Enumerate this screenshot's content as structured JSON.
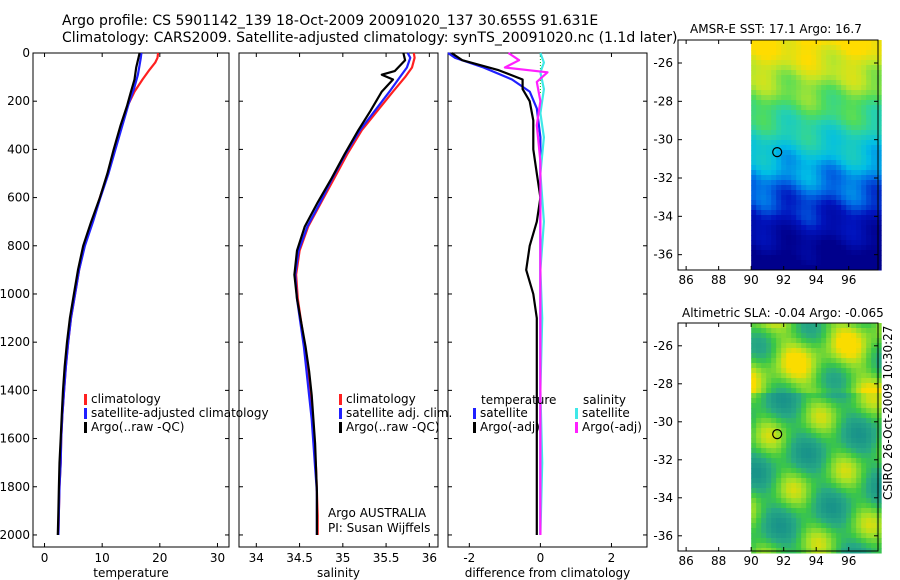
{
  "header": {
    "line1": "Argo profile: CS 5901142_139 18-Oct-2009 20091020_137 30.655S 91.631E",
    "line2": "Climatology: CARS2009. Satellite-adjusted climatology: synTS_20091020.nc (1.1d later)"
  },
  "colors": {
    "climatology": "#ff2020",
    "satellite": "#2020ff",
    "argo": "#000000",
    "sal_satellite": "#40e8e8",
    "sal_argo": "#ff20ff",
    "zero_line": "#00c000"
  },
  "chart_data": [
    {
      "type": "line",
      "id": "temperature",
      "xlabel": "temperature",
      "xlim": [
        -2,
        32
      ],
      "xticks": [
        0,
        10,
        20,
        30
      ],
      "ylim": [
        0,
        2050
      ],
      "yticks": [
        0,
        200,
        400,
        600,
        800,
        1000,
        1200,
        1400,
        1600,
        1800,
        2000
      ],
      "legend": [
        "climatology",
        "satellite-adjusted climatology",
        "Argo(..raw -QC)"
      ],
      "series": [
        {
          "name": "climatology",
          "color": "#ff2020",
          "points": [
            [
              19.7,
              0
            ],
            [
              19.6,
              20
            ],
            [
              19.2,
              40
            ],
            [
              18.2,
              70
            ],
            [
              17.0,
              110
            ],
            [
              15.6,
              160
            ],
            [
              14.4,
              220
            ],
            [
              13.3,
              300
            ],
            [
              12.2,
              400
            ],
            [
              11.0,
              500
            ],
            [
              9.6,
              600
            ],
            [
              8.3,
              700
            ],
            [
              6.9,
              800
            ],
            [
              6.0,
              900
            ],
            [
              5.3,
              1000
            ],
            [
              4.6,
              1100
            ],
            [
              4.1,
              1200
            ],
            [
              3.7,
              1300
            ],
            [
              3.4,
              1400
            ],
            [
              3.1,
              1500
            ],
            [
              2.9,
              1600
            ],
            [
              2.8,
              1700
            ],
            [
              2.6,
              1800
            ],
            [
              2.5,
              1900
            ],
            [
              2.4,
              2000
            ]
          ]
        },
        {
          "name": "satellite",
          "color": "#2020ff",
          "points": [
            [
              16.8,
              0
            ],
            [
              16.7,
              20
            ],
            [
              16.5,
              50
            ],
            [
              16.2,
              90
            ],
            [
              15.5,
              150
            ],
            [
              14.6,
              210
            ],
            [
              13.5,
              300
            ],
            [
              12.3,
              400
            ],
            [
              11.1,
              500
            ],
            [
              9.7,
              600
            ],
            [
              8.4,
              700
            ],
            [
              7.0,
              800
            ],
            [
              6.0,
              900
            ],
            [
              5.3,
              1000
            ],
            [
              4.6,
              1100
            ],
            [
              4.1,
              1200
            ],
            [
              3.7,
              1300
            ],
            [
              3.4,
              1400
            ],
            [
              3.1,
              1500
            ],
            [
              2.9,
              1600
            ],
            [
              2.8,
              1700
            ],
            [
              2.6,
              1800
            ],
            [
              2.5,
              1900
            ],
            [
              2.4,
              2000
            ]
          ]
        },
        {
          "name": "argo",
          "color": "#000000",
          "points": [
            [
              16.5,
              0
            ],
            [
              16.3,
              20
            ],
            [
              15.9,
              60
            ],
            [
              15.6,
              110
            ],
            [
              15.0,
              160
            ],
            [
              14.3,
              220
            ],
            [
              13.2,
              300
            ],
            [
              12.0,
              400
            ],
            [
              10.9,
              500
            ],
            [
              9.6,
              600
            ],
            [
              8.1,
              700
            ],
            [
              6.7,
              800
            ],
            [
              5.8,
              900
            ],
            [
              5.1,
              1000
            ],
            [
              4.4,
              1100
            ],
            [
              3.9,
              1200
            ],
            [
              3.5,
              1300
            ],
            [
              3.2,
              1400
            ],
            [
              3.0,
              1500
            ],
            [
              2.8,
              1600
            ],
            [
              2.6,
              1700
            ],
            [
              2.5,
              1800
            ],
            [
              2.4,
              1900
            ],
            [
              2.3,
              2000
            ]
          ]
        }
      ]
    },
    {
      "type": "line",
      "id": "salinity",
      "xlabel": "salinity",
      "xlim": [
        33.8,
        36.1
      ],
      "xticks": [
        34,
        34.5,
        35,
        35.5,
        36
      ],
      "ylim": [
        0,
        2050
      ],
      "legend": [
        "climatology",
        "satellite adj. clim.",
        "Argo(..raw -QC)"
      ],
      "annotation": [
        "Argo AUSTRALIA",
        "PI: Susan Wijffels"
      ],
      "series": [
        {
          "name": "climatology",
          "color": "#ff2020",
          "points": [
            [
              35.82,
              0
            ],
            [
              35.83,
              20
            ],
            [
              35.8,
              60
            ],
            [
              35.72,
              100
            ],
            [
              35.58,
              160
            ],
            [
              35.4,
              240
            ],
            [
              35.22,
              320
            ],
            [
              35.05,
              420
            ],
            [
              34.9,
              520
            ],
            [
              34.75,
              620
            ],
            [
              34.6,
              720
            ],
            [
              34.5,
              820
            ],
            [
              34.46,
              920
            ],
            [
              34.48,
              1020
            ],
            [
              34.52,
              1120
            ],
            [
              34.56,
              1220
            ],
            [
              34.59,
              1320
            ],
            [
              34.62,
              1420
            ],
            [
              34.65,
              1520
            ],
            [
              34.67,
              1620
            ],
            [
              34.69,
              1720
            ],
            [
              34.7,
              1820
            ],
            [
              34.71,
              1920
            ],
            [
              34.71,
              2000
            ]
          ]
        },
        {
          "name": "satellite",
          "color": "#2020ff",
          "points": [
            [
              35.75,
              0
            ],
            [
              35.78,
              20
            ],
            [
              35.74,
              60
            ],
            [
              35.66,
              100
            ],
            [
              35.54,
              160
            ],
            [
              35.37,
              240
            ],
            [
              35.2,
              320
            ],
            [
              35.03,
              420
            ],
            [
              34.88,
              520
            ],
            [
              34.74,
              620
            ],
            [
              34.59,
              720
            ],
            [
              34.49,
              820
            ],
            [
              34.45,
              920
            ],
            [
              34.47,
              1020
            ],
            [
              34.51,
              1120
            ],
            [
              34.55,
              1220
            ],
            [
              34.58,
              1320
            ],
            [
              34.61,
              1420
            ],
            [
              34.64,
              1520
            ],
            [
              34.66,
              1620
            ],
            [
              34.68,
              1720
            ],
            [
              34.7,
              1820
            ],
            [
              34.7,
              1920
            ],
            [
              34.7,
              2000
            ]
          ]
        },
        {
          "name": "argo",
          "color": "#000000",
          "points": [
            [
              35.7,
              0
            ],
            [
              35.72,
              30
            ],
            [
              35.6,
              75
            ],
            [
              35.45,
              90
            ],
            [
              35.58,
              110
            ],
            [
              35.45,
              160
            ],
            [
              35.32,
              240
            ],
            [
              35.18,
              320
            ],
            [
              35.02,
              420
            ],
            [
              34.87,
              520
            ],
            [
              34.71,
              620
            ],
            [
              34.56,
              720
            ],
            [
              34.47,
              820
            ],
            [
              34.44,
              920
            ],
            [
              34.47,
              1020
            ],
            [
              34.52,
              1120
            ],
            [
              34.57,
              1220
            ],
            [
              34.61,
              1320
            ],
            [
              34.64,
              1420
            ],
            [
              34.66,
              1520
            ],
            [
              34.68,
              1620
            ],
            [
              34.69,
              1720
            ],
            [
              34.7,
              1820
            ],
            [
              34.7,
              1920
            ],
            [
              34.7,
              2000
            ]
          ]
        }
      ]
    },
    {
      "type": "line",
      "id": "difference",
      "xlabel": "difference from climatology",
      "xlim": [
        -2.6,
        3.0
      ],
      "xticks": [
        -2,
        0,
        2
      ],
      "ylim": [
        0,
        2050
      ],
      "legend_temperature_title": "temperature",
      "legend_salinity_title": "salinity",
      "legend_temperature": [
        "satellite",
        "Argo(-adj)"
      ],
      "legend_salinity": [
        "satellite",
        "Argo(-adj)"
      ],
      "series": [
        {
          "name": "temperature satellite",
          "color": "#2020ff",
          "points": [
            [
              -2.6,
              0
            ],
            [
              -2.4,
              20
            ],
            [
              -1.6,
              60
            ],
            [
              -0.8,
              110
            ],
            [
              -0.3,
              160
            ],
            [
              -0.1,
              230
            ],
            [
              0,
              350
            ],
            [
              0,
              500
            ],
            [
              0,
              700
            ],
            [
              0,
              900
            ],
            [
              0,
              1100
            ],
            [
              0,
              1400
            ],
            [
              0,
              1700
            ],
            [
              0,
              2000
            ]
          ]
        },
        {
          "name": "temperature argo",
          "color": "#000000",
          "points": [
            [
              -2.5,
              0
            ],
            [
              -2.2,
              30
            ],
            [
              -1.2,
              70
            ],
            [
              -0.5,
              110
            ],
            [
              -0.5,
              150
            ],
            [
              -0.3,
              200
            ],
            [
              -0.2,
              280
            ],
            [
              -0.2,
              400
            ],
            [
              -0.1,
              500
            ],
            [
              0,
              600
            ],
            [
              -0.1,
              700
            ],
            [
              -0.3,
              800
            ],
            [
              -0.4,
              900
            ],
            [
              -0.2,
              1000
            ],
            [
              -0.1,
              1100
            ],
            [
              -0.1,
              1300
            ],
            [
              -0.1,
              1500
            ],
            [
              -0.1,
              1700
            ],
            [
              -0.1,
              1900
            ],
            [
              -0.1,
              2000
            ]
          ]
        },
        {
          "name": "salinity satellite",
          "color": "#40e8e8",
          "points": [
            [
              0,
              0
            ],
            [
              0.1,
              40
            ],
            [
              0,
              80
            ],
            [
              0.1,
              150
            ],
            [
              0,
              250
            ],
            [
              0.1,
              350
            ],
            [
              0,
              500
            ],
            [
              0.1,
              700
            ],
            [
              0,
              900
            ],
            [
              0.05,
              1100
            ],
            [
              0,
              1400
            ],
            [
              0.05,
              1700
            ],
            [
              0,
              2000
            ]
          ]
        },
        {
          "name": "salinity argo",
          "color": "#ff20ff",
          "points": [
            [
              -0.9,
              0
            ],
            [
              -0.6,
              30
            ],
            [
              -1.0,
              60
            ],
            [
              0.2,
              80
            ],
            [
              -0.1,
              120
            ],
            [
              0,
              200
            ],
            [
              -0.1,
              300
            ],
            [
              0,
              450
            ],
            [
              0,
              650
            ],
            [
              0,
              900
            ],
            [
              0,
              1200
            ],
            [
              0,
              1500
            ],
            [
              0,
              1800
            ],
            [
              0,
              2000
            ]
          ]
        }
      ]
    }
  ],
  "maps": [
    {
      "title": "AMSR-E SST: 17.1 Argo: 16.7",
      "yticks": [
        -26,
        -28,
        -30,
        -32,
        -34,
        -36
      ],
      "xticks": [
        86,
        88,
        90,
        92,
        94,
        96
      ],
      "argo_lon": 91.6,
      "argo_lat": -30.65,
      "xlim": [
        85.5,
        97.8
      ],
      "ylim": [
        -36.8,
        -24.8
      ],
      "data_lon_start": 90
    },
    {
      "title": "Altimetric SLA: -0.04 Argo: -0.065",
      "yticks": [
        -26,
        -28,
        -30,
        -32,
        -34,
        -36
      ],
      "xticks": [
        86,
        88,
        90,
        92,
        94,
        96
      ],
      "argo_lon": 91.6,
      "argo_lat": -30.65,
      "xlim": [
        85.5,
        97.8
      ],
      "ylim": [
        -36.8,
        -24.8
      ],
      "data_lon_start": 90
    }
  ],
  "credit": "CSIRO 26-Oct-2009 10:30:27"
}
